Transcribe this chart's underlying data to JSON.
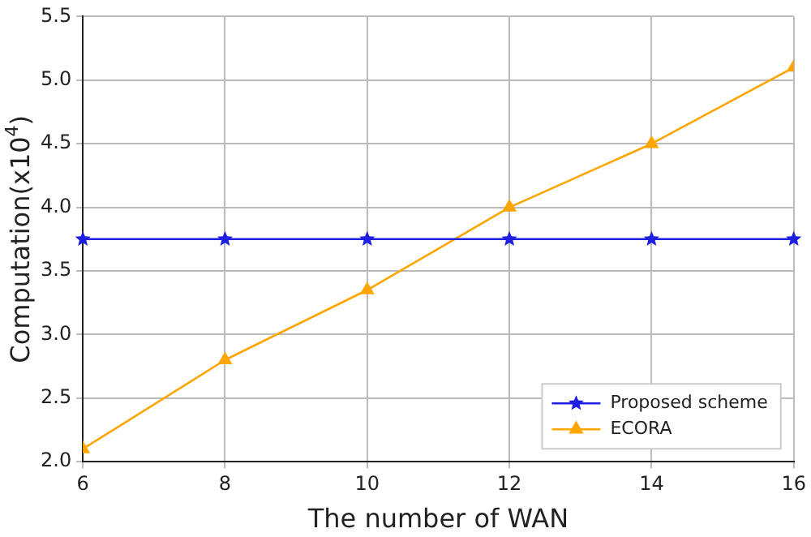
{
  "chart_data": {
    "type": "line",
    "xlabel": "The number of WAN",
    "ylabel": "Computation(x10$^{4}$)",
    "x": [
      6,
      8,
      10,
      12,
      14,
      16
    ],
    "series": [
      {
        "name": "Proposed scheme",
        "color": "#1f1fe0",
        "marker": "star",
        "values": [
          3.75,
          3.75,
          3.75,
          3.75,
          3.75,
          3.75
        ]
      },
      {
        "name": "ECORA",
        "color": "#ffa500",
        "marker": "triangle",
        "values": [
          2.1,
          2.8,
          3.35,
          4.0,
          4.5,
          5.1
        ]
      }
    ],
    "xlim": [
      6,
      16
    ],
    "xticks": [
      6,
      8,
      10,
      12,
      14,
      16
    ],
    "ylim": [
      2,
      5.5
    ],
    "yticks": [
      {
        "value": 2,
        "label": "2.0"
      },
      {
        "value": 2.5,
        "label": "2.5"
      },
      {
        "value": 3,
        "label": "3.0"
      },
      {
        "value": 3.5,
        "label": "3.5"
      },
      {
        "value": 4,
        "label": "4.0"
      },
      {
        "value": 4.5,
        "label": "4.5"
      },
      {
        "value": 5,
        "label": "5.0"
      },
      {
        "value": 5.5,
        "label": "5.5"
      }
    ],
    "grid": true,
    "legend": "bottom right",
    "line_style": "solid"
  }
}
